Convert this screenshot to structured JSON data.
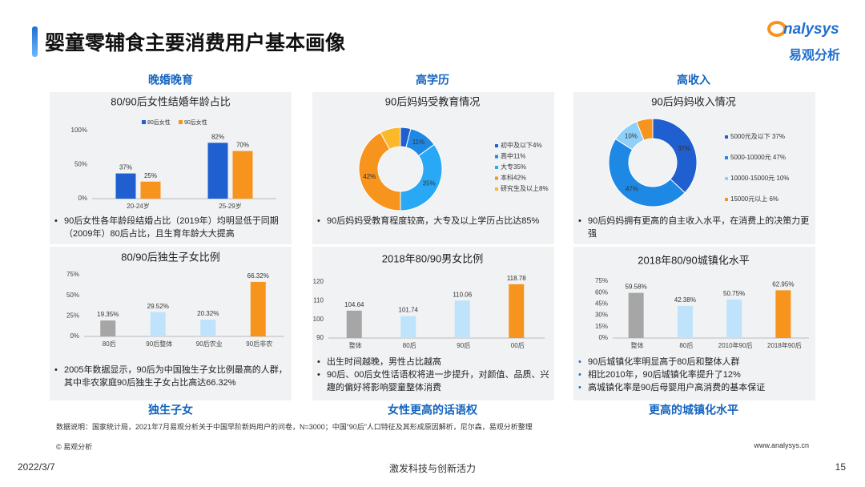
{
  "header": {
    "title": "婴童零辅食主要消费用户基本画像",
    "logo": "nalysys",
    "logo_sub": "易观分析"
  },
  "sections": {
    "top": [
      "晚婚晚育",
      "高学历",
      "高收入"
    ],
    "bottom": [
      "独生子女",
      "女性更高的话语权",
      "更高的城镇化水平"
    ]
  },
  "panels": [
    {
      "bullets": [
        "90后女性各年龄段结婚占比（2019年）均明显低于同期（2009年）80后占比，且生育年龄大大提高"
      ]
    },
    {
      "bullets": [
        "90后妈妈受教育程度较高，大专及以上学历占比达85%"
      ]
    },
    {
      "bullets": [
        "90后妈妈拥有更高的自主收入水平，在消费上的决策力更强"
      ]
    },
    {
      "bullets": [
        "2005年数据显示，90后为中国独生子女比例最高的人群，其中非农家庭90后独生子女占比高达66.32%"
      ]
    },
    {
      "bullets": [
        "出生时间越晚，男性占比越高",
        "90后、00后女性话语权将进一步提升，对颜值、品质、兴趣的偏好将影响婴童整体消费"
      ]
    },
    {
      "bullets": [
        "90后城镇化率明显高于80后和整体人群",
        "相比2010年，90后城镇化率提升了12%",
        "高城镇化率是90后母婴用户高消费的基本保证"
      ]
    }
  ],
  "footnote": "数据说明：国家统计局，2021年7月易观分析关于中国早阶新妈用户的问卷，N=3000；中国“90后”人口特征及其形成原因解析，尼尔森，易观分析整理",
  "copyright": "© 易观分析",
  "website": "www.analysys.cn",
  "footer": {
    "date": "2022/3/7",
    "slogan": "激发科技与创新活力",
    "page": "15"
  },
  "chart_data": [
    {
      "type": "bar",
      "title": "80/90后女性结婚年龄占比",
      "categories": [
        "20-24岁",
        "25-29岁"
      ],
      "series": [
        {
          "name": "80后女性",
          "color": "#1f5fd0",
          "values": [
            37,
            82
          ],
          "value_labels": [
            "37%",
            "82%"
          ]
        },
        {
          "name": "90后女性",
          "color": "#f7941d",
          "values": [
            25,
            70
          ],
          "value_labels": [
            "25%",
            "70%"
          ]
        }
      ],
      "ylim": [
        0,
        100
      ],
      "yticks": [
        {
          "value": 0,
          "label": "0%"
        },
        {
          "value": 50,
          "label": "50%"
        },
        {
          "value": 100,
          "label": "100%"
        }
      ],
      "legend": "top"
    },
    {
      "type": "donut",
      "title": "90后妈妈受教育情况",
      "categories": [
        "初中及以下4%",
        "高中11%",
        "大专35%",
        "本科42%",
        "研究生及以上8%"
      ],
      "values": [
        4,
        11,
        35,
        42,
        8
      ],
      "value_labels": [
        null,
        "11%",
        "35%",
        "42%",
        null
      ],
      "colors": [
        "#1f5fd0",
        "#1e88e5",
        "#29a8f5",
        "#f7941d",
        "#fbb829"
      ],
      "legend": "right"
    },
    {
      "type": "donut",
      "title": "90后妈妈收入情况",
      "categories": [
        "5000元及以下 37%",
        "5000-10000元 47%",
        "10000-15000元 10%",
        "15000元以上 6%"
      ],
      "values": [
        37,
        47,
        10,
        6
      ],
      "value_labels": [
        "37%",
        "47%",
        "10%",
        null
      ],
      "colors": [
        "#1f5fd0",
        "#1e88e5",
        "#8fd0fa",
        "#f7941d"
      ],
      "legend": "right"
    },
    {
      "type": "bar",
      "title": "80/90后独生子女比例",
      "categories": [
        "80后",
        "90后整体",
        "90后农业",
        "90后非农"
      ],
      "values": [
        19.35,
        29.52,
        20.32,
        66.32
      ],
      "value_labels": [
        "19.35%",
        "29.52%",
        "20.32%",
        "66.32%"
      ],
      "colors": [
        "#a6a6a6",
        "#bfe3fb",
        "#bfe3fb",
        "#f7941d"
      ],
      "ylim": [
        0,
        75
      ],
      "yticks": [
        {
          "value": 0,
          "label": "0%"
        },
        {
          "value": 25,
          "label": "25%"
        },
        {
          "value": 50,
          "label": "50%"
        },
        {
          "value": 75,
          "label": "75%"
        }
      ]
    },
    {
      "type": "bar",
      "title": "2018年80/90男女比例",
      "categories": [
        "整体",
        "80后",
        "90后",
        "00后"
      ],
      "values": [
        104.64,
        101.74,
        110.06,
        118.78
      ],
      "colors": [
        "#a6a6a6",
        "#bfe3fb",
        "#bfe3fb",
        "#f7941d"
      ],
      "ylim": [
        90,
        120
      ],
      "yticks": [
        90,
        100,
        110,
        120
      ]
    },
    {
      "type": "bar",
      "title": "2018年80/90城镇化水平",
      "categories": [
        "整体",
        "80后",
        "2010年90后",
        "2018年90后"
      ],
      "values": [
        59.58,
        42.38,
        50.75,
        62.95
      ],
      "value_labels": [
        "59.58%",
        "42.38%",
        "50.75%",
        "62.95%"
      ],
      "colors": [
        "#a6a6a6",
        "#bfe3fb",
        "#bfe3fb",
        "#f7941d"
      ],
      "ylim": [
        0,
        75
      ],
      "yticks": [
        {
          "value": 0,
          "label": "0%"
        },
        {
          "value": 15,
          "label": "15%"
        },
        {
          "value": 30,
          "label": "30%"
        },
        {
          "value": 45,
          "label": "45%"
        },
        {
          "value": 60,
          "label": "60%"
        },
        {
          "value": 75,
          "label": "75%"
        }
      ]
    }
  ]
}
